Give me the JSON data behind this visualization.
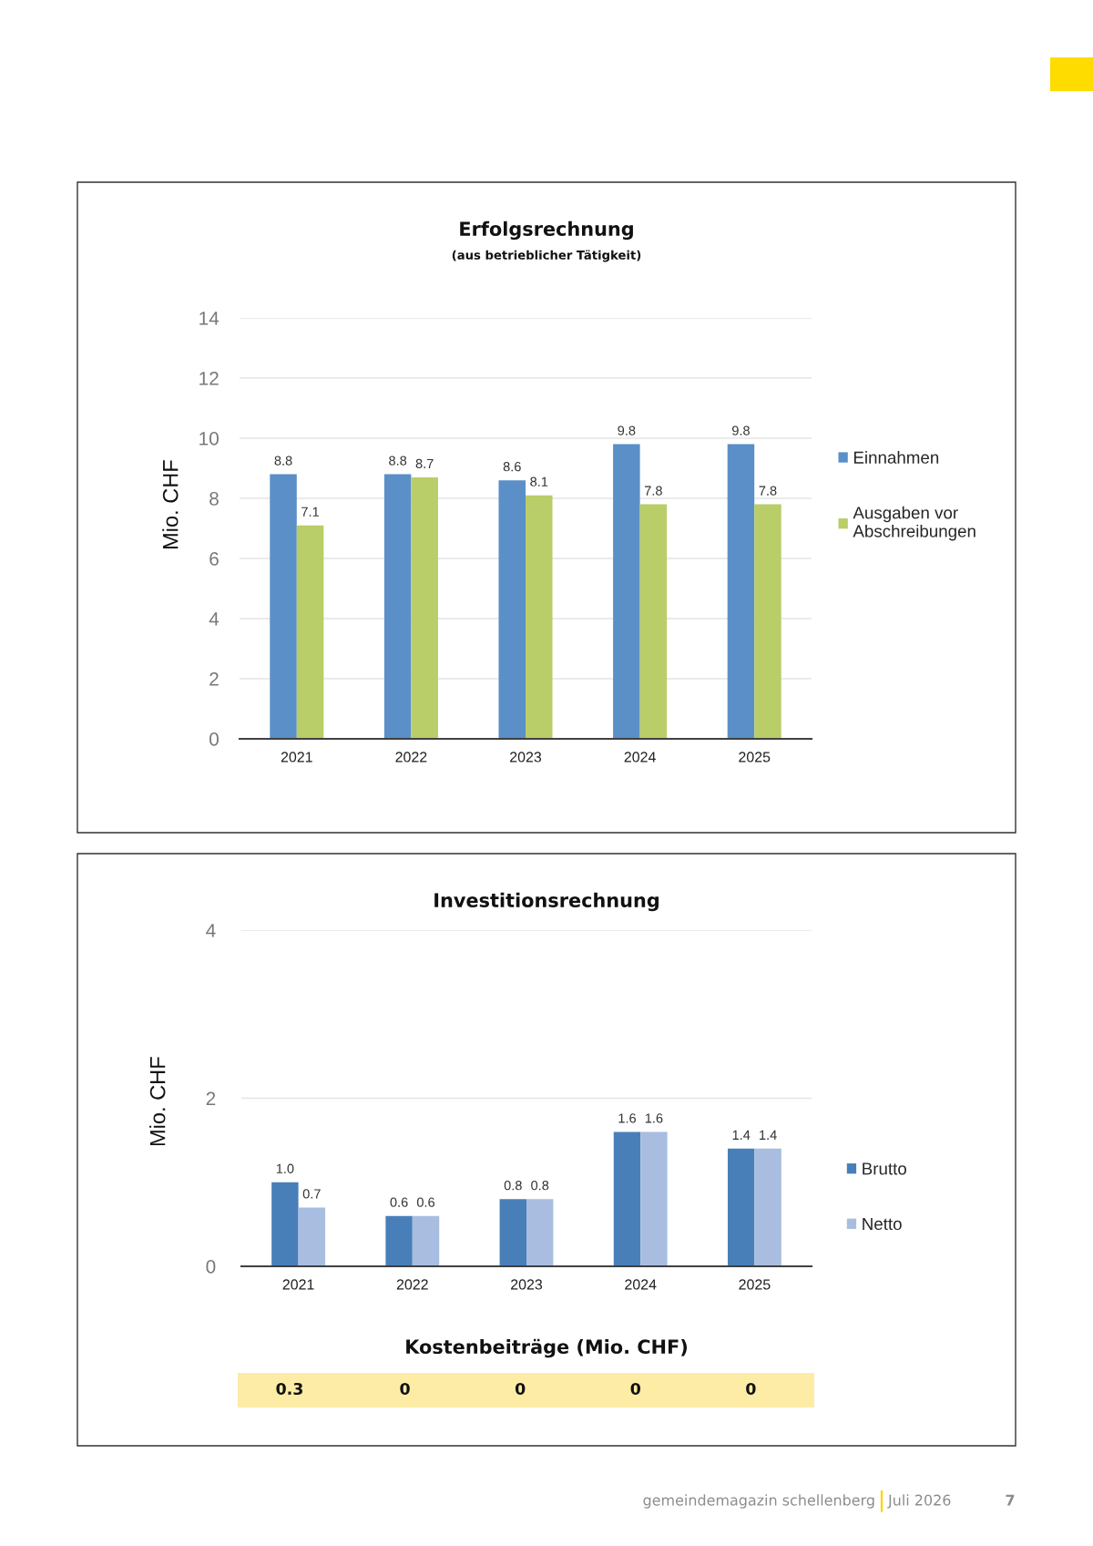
{
  "chart_data": [
    {
      "type": "bar",
      "title": "Erfolgsrechnung",
      "subtitle": "(aus betrieblicher Tätigkeit)",
      "ylabel": "Mio. CHF",
      "categories": [
        "2021",
        "2022",
        "2023",
        "2024",
        "2025"
      ],
      "series": [
        {
          "name": "Einnahmen",
          "color": "#5b8fc7",
          "values": [
            8.8,
            8.8,
            8.6,
            9.8,
            9.8
          ]
        },
        {
          "name": "Ausgaben vor\nAbschreibungen",
          "color": "#b9cd68",
          "values": [
            7.1,
            8.7,
            8.1,
            7.8,
            7.8
          ]
        }
      ],
      "ylim": [
        0,
        14
      ],
      "yticks": [
        0,
        2,
        4,
        6,
        8,
        10,
        12,
        14
      ],
      "grid": "y",
      "legend": "right",
      "data_labels": true
    },
    {
      "type": "bar",
      "title": "Investitionsrechnung",
      "ylabel": "Mio. CHF",
      "categories": [
        "2021",
        "2022",
        "2023",
        "2024",
        "2025"
      ],
      "series": [
        {
          "name": "Brutto",
          "color": "#487fb9",
          "values": [
            1.0,
            0.6,
            0.8,
            1.6,
            1.4
          ],
          "value_labels": [
            "1.0",
            "0.6",
            "0.8",
            "1.6",
            "1.4"
          ]
        },
        {
          "name": "Netto",
          "color": "#a8bde0",
          "values": [
            0.7,
            0.6,
            0.8,
            1.6,
            1.4
          ],
          "value_labels": [
            "0.7",
            "0.6",
            "0.8",
            "1.6",
            "1.4"
          ]
        }
      ],
      "ylim": [
        0,
        4
      ],
      "yticks": [
        0,
        2,
        4
      ],
      "grid": "y",
      "legend": "right"
    },
    {
      "type": "other",
      "title": "Kostenbeiträge (Mio. CHF)",
      "values": [
        0.3,
        0,
        0,
        0,
        0
      ],
      "color": "#fdeca6",
      "data_labels": true,
      "annotations": [
        "gemeindemagazin schellenberg",
        "Juli 2026",
        "7"
      ]
    }
  ]
}
